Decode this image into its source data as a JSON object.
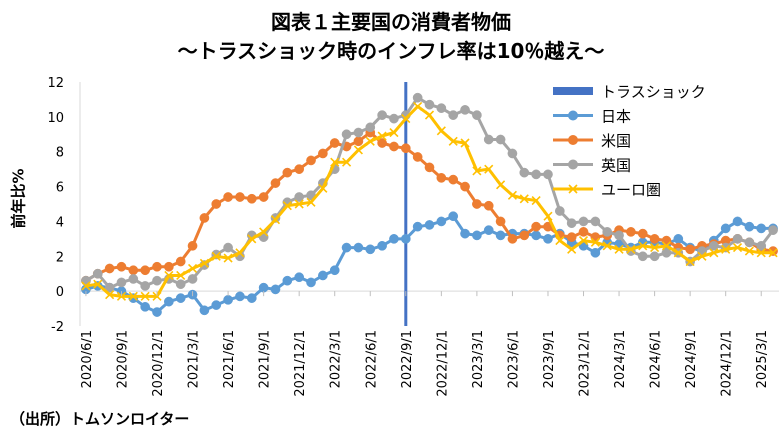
{
  "chart_data": {
    "type": "line",
    "title": "図表１主要国の消費者物価",
    "subtitle": "～トラスショック時のインフレ率は10％越え～",
    "xlabel": "",
    "ylabel": "前年比%",
    "ylim": [
      -2,
      12
    ],
    "yticks": [
      -2,
      0,
      2,
      4,
      6,
      8,
      10,
      12
    ],
    "grid": false,
    "legend_position": "right",
    "source": "（出所）トムソンロイター",
    "x": [
      "2020/6/1",
      "2020/7/1",
      "2020/8/1",
      "2020/9/1",
      "2020/10/1",
      "2020/11/1",
      "2020/12/1",
      "2021/1/1",
      "2021/2/1",
      "2021/3/1",
      "2021/4/1",
      "2021/5/1",
      "2021/6/1",
      "2021/7/1",
      "2021/8/1",
      "2021/9/1",
      "2021/10/1",
      "2021/11/1",
      "2021/12/1",
      "2022/1/1",
      "2022/2/1",
      "2022/3/1",
      "2022/4/1",
      "2022/5/1",
      "2022/6/1",
      "2022/7/1",
      "2022/8/1",
      "2022/9/1",
      "2022/10/1",
      "2022/11/1",
      "2022/12/1",
      "2023/1/1",
      "2023/2/1",
      "2023/3/1",
      "2023/4/1",
      "2023/5/1",
      "2023/6/1",
      "2023/7/1",
      "2023/8/1",
      "2023/9/1",
      "2023/10/1",
      "2023/11/1",
      "2023/12/1",
      "2024/1/1",
      "2024/2/1",
      "2024/3/1",
      "2024/4/1",
      "2024/5/1",
      "2024/6/1",
      "2024/7/1",
      "2024/8/1",
      "2024/9/1",
      "2024/10/1",
      "2024/11/1",
      "2024/12/1",
      "2025/1/1",
      "2025/2/1",
      "2025/3/1",
      "2025/4/1"
    ],
    "x_tick_labels": [
      "2020/6/1",
      "2020/9/1",
      "2020/12/1",
      "2021/3/1",
      "2021/6/1",
      "2021/9/1",
      "2021/12/1",
      "2022/3/1",
      "2022/6/1",
      "2022/9/1",
      "2022/12/1",
      "2023/3/1",
      "2023/6/1",
      "2023/9/1",
      "2023/12/1",
      "2024/3/1",
      "2024/6/1",
      "2024/9/1",
      "2024/12/1",
      "2025/3/1"
    ],
    "event": {
      "name": "トラスショック",
      "x": "2022/9/1",
      "color": "#4472C4"
    },
    "series": [
      {
        "name": "日本",
        "color": "#5B9BD5",
        "marker": "circle",
        "values": [
          0.1,
          0.3,
          0.2,
          0.0,
          -0.4,
          -0.9,
          -1.2,
          -0.6,
          -0.4,
          -0.2,
          -1.1,
          -0.8,
          -0.5,
          -0.3,
          -0.4,
          0.2,
          0.1,
          0.6,
          0.8,
          0.5,
          0.9,
          1.2,
          2.5,
          2.5,
          2.4,
          2.6,
          3.0,
          3.0,
          3.7,
          3.8,
          4.0,
          4.3,
          3.3,
          3.2,
          3.5,
          3.2,
          3.3,
          3.3,
          3.2,
          3.0,
          3.3,
          2.8,
          2.6,
          2.2,
          2.8,
          2.7,
          2.5,
          2.8,
          2.8,
          2.7,
          3.0,
          2.5,
          2.3,
          2.9,
          3.6,
          4.0,
          3.7,
          3.6,
          3.6
        ]
      },
      {
        "name": "米国",
        "color": "#ED7D31",
        "marker": "circle",
        "values": [
          0.6,
          1.0,
          1.3,
          1.4,
          1.2,
          1.2,
          1.4,
          1.4,
          1.7,
          2.6,
          4.2,
          5.0,
          5.4,
          5.4,
          5.3,
          5.4,
          6.2,
          6.8,
          7.0,
          7.5,
          7.9,
          8.5,
          8.3,
          8.6,
          9.1,
          8.5,
          8.3,
          8.2,
          7.7,
          7.1,
          6.5,
          6.4,
          6.0,
          5.0,
          4.9,
          4.0,
          3.0,
          3.2,
          3.7,
          3.7,
          3.2,
          3.1,
          3.4,
          3.1,
          3.2,
          3.5,
          3.4,
          3.3,
          3.0,
          2.9,
          2.5,
          2.4,
          2.6,
          2.7,
          2.9,
          3.0,
          2.8,
          2.4,
          2.3
        ]
      },
      {
        "name": "英国",
        "color": "#A5A5A5",
        "marker": "circle",
        "values": [
          0.6,
          1.0,
          0.2,
          0.5,
          0.7,
          0.3,
          0.6,
          0.7,
          0.4,
          0.7,
          1.5,
          2.1,
          2.5,
          2.0,
          3.2,
          3.1,
          4.2,
          5.1,
          5.4,
          5.5,
          6.2,
          7.0,
          9.0,
          9.1,
          9.4,
          10.1,
          9.9,
          10.1,
          11.1,
          10.7,
          10.5,
          10.1,
          10.4,
          10.1,
          8.7,
          8.7,
          7.9,
          6.8,
          6.7,
          6.7,
          4.6,
          3.9,
          4.0,
          4.0,
          3.4,
          3.2,
          2.3,
          2.0,
          2.0,
          2.2,
          2.2,
          1.7,
          2.3,
          2.6,
          2.5,
          3.0,
          2.8,
          2.6,
          3.5
        ]
      },
      {
        "name": "ユーロ圏",
        "color": "#FFC000",
        "marker": "x",
        "values": [
          0.3,
          0.4,
          -0.2,
          -0.3,
          -0.3,
          -0.3,
          -0.3,
          0.9,
          0.9,
          1.3,
          1.6,
          2.0,
          1.9,
          2.2,
          3.0,
          3.4,
          4.1,
          4.9,
          5.0,
          5.1,
          5.9,
          7.4,
          7.4,
          8.1,
          8.6,
          8.9,
          9.1,
          9.9,
          10.6,
          10.1,
          9.2,
          8.6,
          8.5,
          6.9,
          7.0,
          6.1,
          5.5,
          5.3,
          5.2,
          4.3,
          2.9,
          2.4,
          2.9,
          2.8,
          2.6,
          2.4,
          2.4,
          2.6,
          2.5,
          2.6,
          2.2,
          1.7,
          2.0,
          2.2,
          2.4,
          2.5,
          2.3,
          2.2,
          2.2
        ]
      }
    ]
  }
}
